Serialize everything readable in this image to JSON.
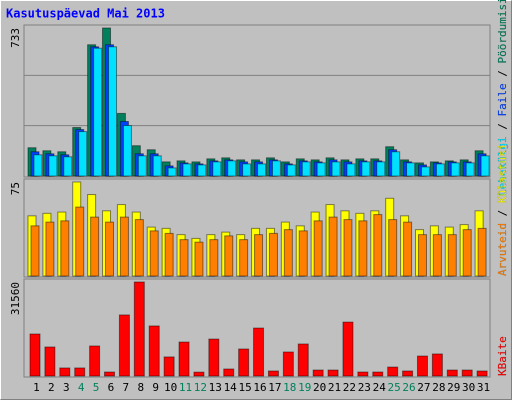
{
  "chart_data": [
    {
      "type": "bar",
      "title": "Kasutuspäevad Mai 2013",
      "ylim": [
        0,
        733
      ],
      "yticks": [
        733
      ],
      "legend_separator": " / ",
      "series": [
        {
          "name": "Pöördumisi",
          "color": "#00805c",
          "values": [
            140,
            125,
            120,
            240,
            650,
            733,
            310,
            150,
            130,
            70,
            75,
            70,
            85,
            90,
            80,
            80,
            90,
            70,
            85,
            80,
            90,
            80,
            85,
            85,
            145,
            80,
            65,
            70,
            75,
            80,
            125
          ]
        },
        {
          "name": "Faile",
          "color": "#0040ff",
          "values": [
            120,
            110,
            105,
            230,
            640,
            650,
            270,
            110,
            110,
            50,
            65,
            60,
            75,
            80,
            70,
            70,
            80,
            60,
            75,
            70,
            80,
            70,
            75,
            75,
            130,
            70,
            55,
            65,
            70,
            70,
            110
          ]
        },
        {
          "name": "Lehekülgi",
          "color": "#00e0ff",
          "values": [
            105,
            100,
            95,
            220,
            633,
            640,
            250,
            100,
            100,
            40,
            60,
            55,
            70,
            75,
            60,
            60,
            75,
            55,
            70,
            65,
            70,
            60,
            70,
            70,
            120,
            65,
            45,
            60,
            65,
            65,
            100
          ]
        }
      ]
    },
    {
      "type": "bar",
      "ylim": [
        0,
        75
      ],
      "yticks": [
        75
      ],
      "legend_separator": " / ",
      "series": [
        {
          "name": "Külastusi",
          "color": "#ffff00",
          "values": [
            48,
            50,
            51,
            75,
            65,
            52,
            57,
            51,
            39,
            38,
            33,
            30,
            33,
            35,
            33,
            38,
            38,
            43,
            40,
            51,
            57,
            52,
            50,
            52,
            62,
            48,
            37,
            40,
            39,
            41,
            52
          ]
        },
        {
          "name": "Arvuteid",
          "color": "#ff8000",
          "values": [
            40,
            43,
            44,
            55,
            47,
            43,
            47,
            45,
            36,
            34,
            29,
            27,
            29,
            32,
            29,
            33,
            34,
            37,
            36,
            44,
            47,
            45,
            44,
            49,
            45,
            43,
            33,
            33,
            33,
            37,
            38
          ]
        }
      ]
    },
    {
      "type": "bar",
      "ylim": [
        0,
        31560
      ],
      "yticks": [
        31560
      ],
      "categories": [
        "1",
        "2",
        "3",
        "4",
        "5",
        "6",
        "7",
        "8",
        "9",
        "10",
        "11",
        "12",
        "13",
        "14",
        "15",
        "16",
        "17",
        "18",
        "19",
        "20",
        "21",
        "22",
        "23",
        "24",
        "25",
        "26",
        "27",
        "28",
        "29",
        "30",
        "31"
      ],
      "category_colors": [
        "#000000",
        "#000000",
        "#000000",
        "#00805c",
        "#00805c",
        "#000000",
        "#000000",
        "#000000",
        "#000000",
        "#000000",
        "#00805c",
        "#00805c",
        "#000000",
        "#000000",
        "#000000",
        "#000000",
        "#000000",
        "#00805c",
        "#00805c",
        "#000000",
        "#000000",
        "#000000",
        "#000000",
        "#000000",
        "#00805c",
        "#00805c",
        "#000000",
        "#000000",
        "#000000",
        "#000000",
        "#000000"
      ],
      "series": [
        {
          "name": "KBaite",
          "color": "#ff0000",
          "values": [
            14100,
            9740,
            2700,
            2700,
            10080,
            1340,
            20500,
            31560,
            16800,
            6400,
            11400,
            1300,
            12400,
            2350,
            9070,
            16100,
            1680,
            8060,
            10750,
            2000,
            2000,
            18100,
            1340,
            1340,
            3000,
            1680,
            6700,
            7400,
            2000,
            2000,
            1680
          ]
        }
      ]
    }
  ]
}
